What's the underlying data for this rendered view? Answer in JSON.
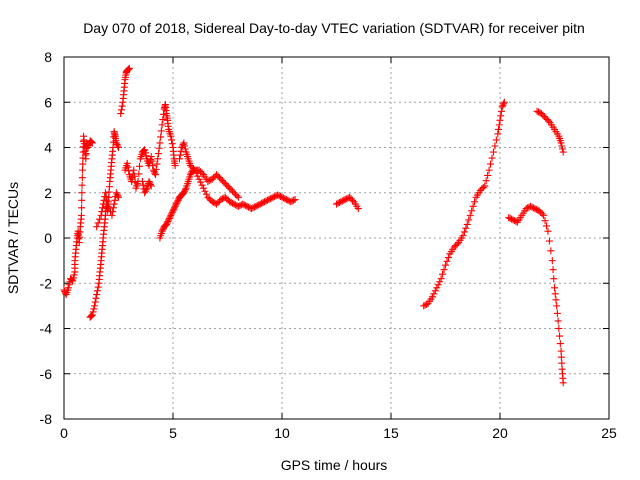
{
  "chart_data": {
    "type": "scatter",
    "title": "Day 070 of 2018, Sidereal Day-to-day VTEC variation (SDTVAR) for receiver pitn",
    "xlabel": "GPS time / hours",
    "ylabel": "SDTVAR / TECUs",
    "xlim": [
      0,
      25
    ],
    "ylim": [
      -8,
      8
    ],
    "xticks": [
      0,
      5,
      10,
      15,
      20,
      25
    ],
    "yticks": [
      -8,
      -6,
      -4,
      -2,
      0,
      2,
      4,
      6,
      8
    ],
    "xtick_labels": [
      "0",
      "5",
      "10",
      "15",
      "20",
      "25"
    ],
    "ytick_labels": [
      "-8",
      "-6",
      "-4",
      "-2",
      "0",
      "2",
      "4",
      "6",
      "8"
    ],
    "grid": true,
    "marker": "+",
    "series": [
      {
        "name": "SDTVAR",
        "color": "#ff0000",
        "segments": [
          [
            [
              0.0,
              -2.3
            ],
            [
              0.1,
              -2.5
            ],
            [
              0.2,
              -2.2
            ],
            [
              0.3,
              -1.8
            ],
            [
              0.4,
              -1.9
            ],
            [
              0.5,
              -1.5
            ],
            [
              0.5,
              -1.0
            ],
            [
              0.55,
              -0.5
            ],
            [
              0.6,
              0.0
            ],
            [
              0.65,
              0.3
            ],
            [
              0.7,
              -0.2
            ],
            [
              0.75,
              0.5
            ],
            [
              0.8,
              1.0
            ],
            [
              0.82,
              2.0
            ],
            [
              0.85,
              3.0
            ],
            [
              0.88,
              3.8
            ],
            [
              0.9,
              4.5
            ],
            [
              0.95,
              4.0
            ],
            [
              1.0,
              3.5
            ],
            [
              1.05,
              4.2
            ],
            [
              1.1,
              4.0
            ],
            [
              1.2,
              4.3
            ],
            [
              1.3,
              4.2
            ]
          ],
          [
            [
              1.2,
              -3.5
            ],
            [
              1.3,
              -3.4
            ],
            [
              1.4,
              -3.0
            ],
            [
              1.5,
              -2.5
            ],
            [
              1.6,
              -2.0
            ],
            [
              1.65,
              -1.5
            ],
            [
              1.7,
              -1.0
            ],
            [
              1.75,
              -0.5
            ],
            [
              1.8,
              0.0
            ],
            [
              1.85,
              0.5
            ],
            [
              1.9,
              1.0
            ],
            [
              1.95,
              1.5
            ],
            [
              2.0,
              1.2
            ],
            [
              2.05,
              1.8
            ],
            [
              2.1,
              2.5
            ],
            [
              2.15,
              3.0
            ],
            [
              2.2,
              3.5
            ],
            [
              2.25,
              4.0
            ],
            [
              2.3,
              4.7
            ],
            [
              2.35,
              4.5
            ],
            [
              2.4,
              4.2
            ],
            [
              2.5,
              4.0
            ]
          ],
          [
            [
              1.5,
              0.5
            ],
            [
              1.7,
              1.0
            ],
            [
              1.8,
              1.5
            ],
            [
              1.9,
              2.0
            ],
            [
              2.0,
              1.5
            ],
            [
              2.2,
              1.0
            ],
            [
              2.3,
              1.5
            ],
            [
              2.4,
              2.0
            ],
            [
              2.5,
              1.8
            ]
          ],
          [
            [
              2.6,
              5.5
            ],
            [
              2.7,
              6.0
            ],
            [
              2.75,
              6.5
            ],
            [
              2.8,
              7.0
            ],
            [
              2.85,
              7.3
            ],
            [
              2.9,
              7.4
            ],
            [
              3.0,
              7.5
            ]
          ],
          [
            [
              2.8,
              3.0
            ],
            [
              2.9,
              3.3
            ],
            [
              3.0,
              2.8
            ],
            [
              3.1,
              2.5
            ],
            [
              3.2,
              3.0
            ],
            [
              3.3,
              2.2
            ],
            [
              3.4,
              2.5
            ],
            [
              3.5,
              3.5
            ],
            [
              3.6,
              3.8
            ],
            [
              3.7,
              3.9
            ],
            [
              3.8,
              3.5
            ],
            [
              3.9,
              3.2
            ],
            [
              4.0,
              3.6
            ],
            [
              4.1,
              3.0
            ],
            [
              4.2,
              2.8
            ],
            [
              4.3,
              3.5
            ],
            [
              4.4,
              4.2
            ],
            [
              4.5,
              5.0
            ],
            [
              4.6,
              5.7
            ],
            [
              4.65,
              5.9
            ],
            [
              4.7,
              5.5
            ],
            [
              4.75,
              5.2
            ],
            [
              4.8,
              4.8
            ],
            [
              4.9,
              4.5
            ],
            [
              5.0,
              4.0
            ],
            [
              5.05,
              3.5
            ],
            [
              5.1,
              3.2
            ]
          ],
          [
            [
              3.6,
              2.5
            ],
            [
              3.7,
              2.0
            ],
            [
              3.8,
              2.2
            ],
            [
              3.9,
              2.5
            ],
            [
              4.0,
              2.3
            ]
          ],
          [
            [
              4.4,
              0.0
            ],
            [
              4.5,
              0.3
            ],
            [
              4.6,
              0.5
            ],
            [
              4.7,
              0.6
            ],
            [
              4.8,
              0.8
            ],
            [
              4.9,
              1.0
            ],
            [
              5.0,
              1.2
            ],
            [
              5.1,
              1.4
            ],
            [
              5.2,
              1.6
            ],
            [
              5.3,
              1.8
            ],
            [
              5.4,
              1.9
            ],
            [
              5.5,
              2.0
            ],
            [
              5.6,
              2.2
            ],
            [
              5.7,
              2.5
            ],
            [
              5.8,
              2.8
            ],
            [
              5.9,
              3.0
            ],
            [
              6.0,
              3.0
            ],
            [
              6.2,
              3.0
            ],
            [
              6.4,
              2.8
            ],
            [
              6.6,
              2.5
            ],
            [
              6.8,
              2.6
            ],
            [
              7.0,
              2.8
            ],
            [
              7.2,
              2.6
            ],
            [
              7.4,
              2.4
            ],
            [
              7.6,
              2.2
            ],
            [
              7.8,
              2.0
            ],
            [
              8.0,
              1.8
            ]
          ],
          [
            [
              5.3,
              3.5
            ],
            [
              5.4,
              4.0
            ],
            [
              5.5,
              4.2
            ],
            [
              5.6,
              3.8
            ],
            [
              5.7,
              3.5
            ],
            [
              5.8,
              3.2
            ],
            [
              6.0,
              3.0
            ],
            [
              6.2,
              2.6
            ],
            [
              6.4,
              2.2
            ],
            [
              6.6,
              1.8
            ],
            [
              6.8,
              1.6
            ],
            [
              7.0,
              1.5
            ],
            [
              7.2,
              1.7
            ],
            [
              7.4,
              1.8
            ],
            [
              7.6,
              1.6
            ],
            [
              7.8,
              1.5
            ],
            [
              8.0,
              1.4
            ],
            [
              8.2,
              1.5
            ],
            [
              8.4,
              1.4
            ],
            [
              8.6,
              1.3
            ],
            [
              8.8,
              1.4
            ],
            [
              9.0,
              1.5
            ],
            [
              9.2,
              1.6
            ],
            [
              9.4,
              1.7
            ],
            [
              9.6,
              1.8
            ],
            [
              9.8,
              1.9
            ],
            [
              10.0,
              1.8
            ],
            [
              10.2,
              1.7
            ],
            [
              10.4,
              1.6
            ],
            [
              10.6,
              1.7
            ]
          ],
          [
            [
              12.5,
              1.5
            ],
            [
              12.7,
              1.6
            ],
            [
              12.9,
              1.7
            ],
            [
              13.1,
              1.8
            ],
            [
              13.3,
              1.6
            ],
            [
              13.5,
              1.3
            ]
          ],
          [
            [
              16.5,
              -3.0
            ],
            [
              16.7,
              -2.9
            ],
            [
              16.9,
              -2.6
            ],
            [
              17.1,
              -2.2
            ],
            [
              17.3,
              -1.8
            ],
            [
              17.5,
              -1.2
            ],
            [
              17.7,
              -0.7
            ],
            [
              17.9,
              -0.4
            ],
            [
              18.1,
              -0.2
            ],
            [
              18.3,
              0.1
            ],
            [
              18.5,
              0.6
            ],
            [
              18.7,
              1.2
            ],
            [
              18.9,
              1.8
            ],
            [
              19.1,
              2.1
            ],
            [
              19.3,
              2.3
            ],
            [
              19.5,
              3.0
            ],
            [
              19.7,
              3.8
            ],
            [
              19.9,
              4.6
            ],
            [
              20.0,
              5.2
            ],
            [
              20.1,
              5.8
            ],
            [
              20.2,
              6.0
            ]
          ],
          [
            [
              20.4,
              0.9
            ],
            [
              20.6,
              0.8
            ],
            [
              20.8,
              0.7
            ],
            [
              21.0,
              1.0
            ],
            [
              21.2,
              1.3
            ],
            [
              21.4,
              1.4
            ],
            [
              21.6,
              1.3
            ],
            [
              21.8,
              1.2
            ],
            [
              22.0,
              1.0
            ],
            [
              22.2,
              0.3
            ],
            [
              22.4,
              -1.0
            ],
            [
              22.5,
              -2.2
            ],
            [
              22.6,
              -3.0
            ],
            [
              22.7,
              -4.0
            ],
            [
              22.8,
              -5.0
            ],
            [
              22.85,
              -5.8
            ],
            [
              22.9,
              -6.4
            ]
          ],
          [
            [
              21.7,
              5.6
            ],
            [
              21.9,
              5.5
            ],
            [
              22.1,
              5.3
            ],
            [
              22.3,
              5.1
            ],
            [
              22.5,
              4.8
            ],
            [
              22.7,
              4.5
            ],
            [
              22.8,
              4.2
            ],
            [
              22.9,
              3.8
            ]
          ]
        ]
      }
    ]
  }
}
